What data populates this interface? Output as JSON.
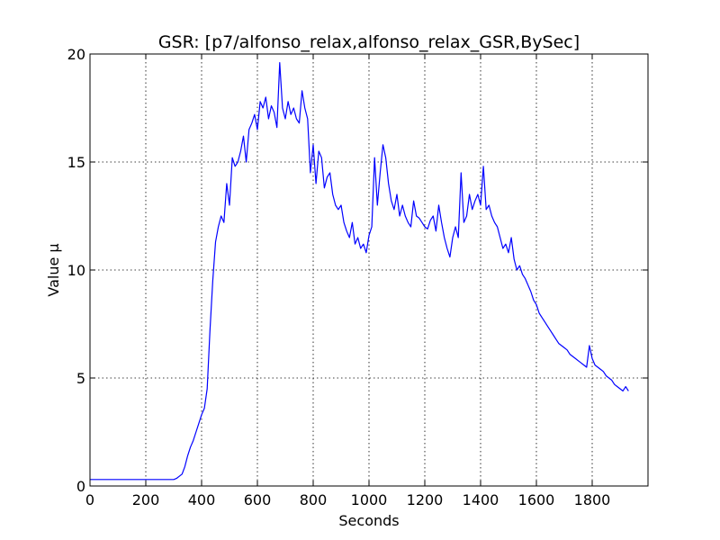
{
  "chart_data": {
    "type": "line",
    "title": "GSR: [p7/alfonso_relax,alfonso_relax_GSR,BySec]",
    "xlabel": "Seconds",
    "ylabel": "Value µ",
    "xlim": [
      0,
      2000
    ],
    "ylim": [
      0,
      20
    ],
    "xticks": [
      "0",
      "200",
      "400",
      "600",
      "800",
      "1000",
      "1200",
      "1400",
      "1600",
      "1800"
    ],
    "yticks": [
      "0",
      "5",
      "10",
      "15",
      "20"
    ],
    "grid": true,
    "line_color": "#0000ff",
    "series": [
      {
        "x": [
          0,
          300,
          310,
          320,
          330,
          340,
          350,
          360,
          370,
          380,
          390,
          400,
          410,
          420,
          430,
          440,
          450,
          460,
          470,
          480,
          490,
          500,
          510,
          520,
          530,
          540,
          550,
          560,
          570,
          580,
          590,
          600,
          610,
          620,
          630,
          640,
          650,
          660,
          670,
          680,
          690,
          700,
          710,
          720,
          730,
          740,
          750,
          760,
          770,
          780,
          790,
          800,
          810,
          820,
          830,
          840,
          850,
          860,
          870,
          880,
          890,
          900,
          910,
          920,
          930,
          940,
          950,
          960,
          970,
          980,
          990,
          1000,
          1010,
          1020,
          1030,
          1040,
          1050,
          1060,
          1070,
          1080,
          1090,
          1100,
          1110,
          1120,
          1130,
          1140,
          1150,
          1160,
          1170,
          1180,
          1190,
          1200,
          1210,
          1220,
          1230,
          1240,
          1250,
          1260,
          1270,
          1280,
          1290,
          1300,
          1310,
          1320,
          1330,
          1340,
          1350,
          1360,
          1370,
          1380,
          1390,
          1400,
          1410,
          1420,
          1430,
          1440,
          1450,
          1460,
          1470,
          1480,
          1490,
          1500,
          1510,
          1520,
          1530,
          1540,
          1550,
          1560,
          1570,
          1580,
          1590,
          1600,
          1610,
          1620,
          1630,
          1640,
          1650,
          1660,
          1670,
          1680,
          1690,
          1700,
          1710,
          1720,
          1730,
          1740,
          1750,
          1760,
          1770,
          1780,
          1790,
          1800,
          1810,
          1820,
          1830,
          1840,
          1850,
          1860,
          1870,
          1880,
          1890,
          1900,
          1910,
          1920,
          1930
        ],
        "y": [
          0.3,
          0.3,
          0.35,
          0.45,
          0.55,
          0.9,
          1.4,
          1.8,
          2.1,
          2.5,
          2.9,
          3.3,
          3.6,
          4.5,
          7.2,
          9.5,
          11.3,
          12.0,
          12.5,
          12.2,
          14.0,
          13.0,
          15.2,
          14.8,
          15.0,
          15.5,
          16.2,
          15.0,
          16.5,
          16.8,
          17.2,
          16.5,
          17.8,
          17.5,
          18.0,
          17.0,
          17.6,
          17.3,
          16.6,
          19.6,
          17.5,
          17.0,
          17.8,
          17.2,
          17.5,
          17.0,
          16.8,
          18.3,
          17.5,
          17.0,
          14.5,
          15.8,
          14.0,
          15.5,
          15.2,
          13.8,
          14.3,
          14.5,
          13.5,
          13.0,
          12.8,
          13.0,
          12.2,
          11.8,
          11.5,
          12.2,
          11.2,
          11.5,
          11.0,
          11.2,
          10.8,
          11.6,
          12.0,
          15.2,
          13.0,
          14.5,
          15.8,
          15.2,
          14.0,
          13.2,
          12.8,
          13.5,
          12.5,
          13.0,
          12.5,
          12.2,
          12.0,
          13.2,
          12.5,
          12.4,
          12.2,
          12.0,
          11.9,
          12.3,
          12.5,
          11.8,
          13.0,
          12.2,
          11.5,
          11.0,
          10.6,
          11.5,
          12.0,
          11.5,
          14.5,
          12.2,
          12.5,
          13.5,
          12.8,
          13.2,
          13.5,
          13.0,
          14.8,
          12.8,
          13.0,
          12.5,
          12.2,
          12.0,
          11.5,
          11.0,
          11.2,
          10.8,
          11.5,
          10.5,
          10.0,
          10.2,
          9.8,
          9.6,
          9.3,
          9.0,
          8.6,
          8.4,
          8.0,
          7.8,
          7.6,
          7.4,
          7.2,
          7.0,
          6.8,
          6.6,
          6.5,
          6.4,
          6.3,
          6.1,
          6.0,
          5.9,
          5.8,
          5.7,
          5.6,
          5.5,
          6.5,
          5.9,
          5.6,
          5.5,
          5.4,
          5.3,
          5.1,
          5.0,
          4.9,
          4.7,
          4.6,
          4.5,
          4.4,
          4.6,
          4.4
        ]
      }
    ]
  }
}
